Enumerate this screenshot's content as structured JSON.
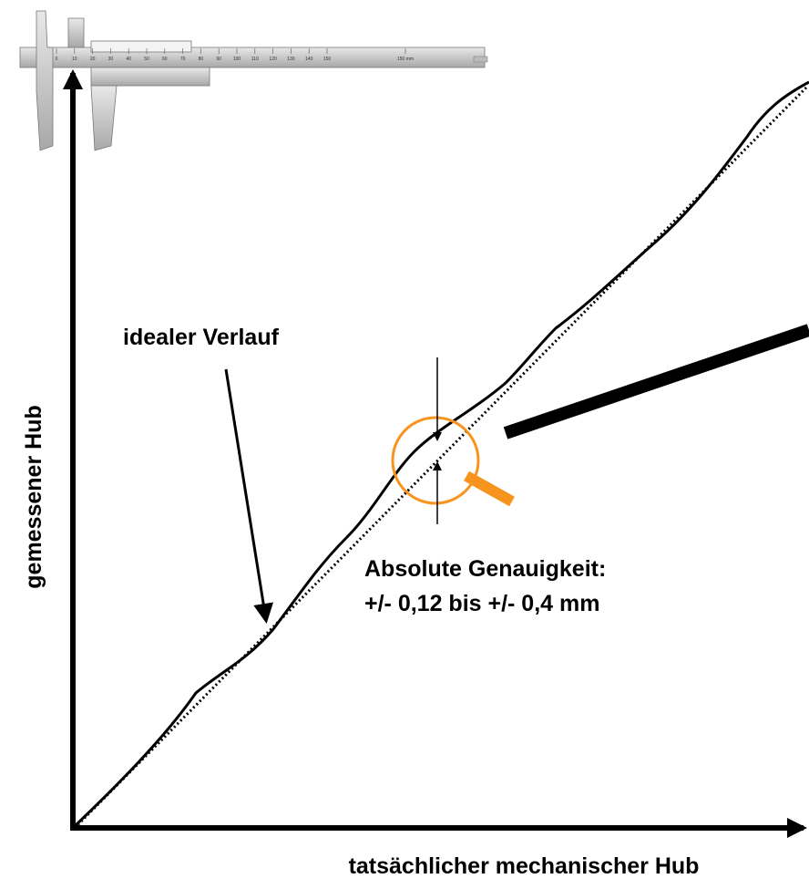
{
  "caliper": {
    "scale": [
      "0",
      "10",
      "20",
      "30",
      "40",
      "50",
      "60",
      "70",
      "80",
      "90",
      "100",
      "110",
      "120",
      "130",
      "140",
      "150",
      "150 mm"
    ]
  },
  "labels": {
    "ideal": "idealer Verlauf",
    "y_axis": "gemessener Hub",
    "x_axis": "tatsächlicher mechanischer Hub",
    "accuracy_title": "Absolute Genauigkeit:",
    "accuracy_value": "+/- 0,12 bis +/- 0,4 mm"
  }
}
